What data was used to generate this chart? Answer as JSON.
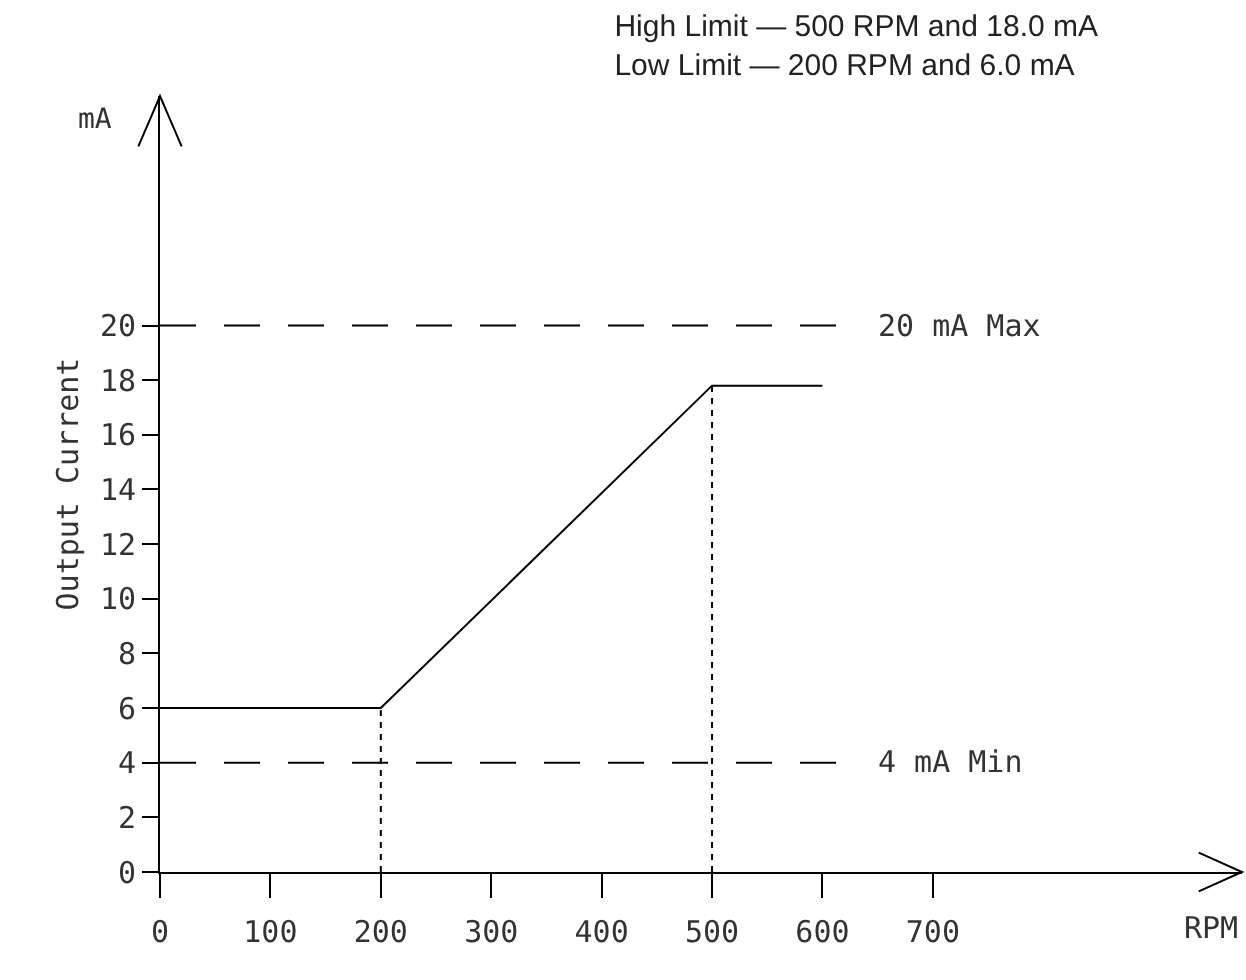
{
  "chart_data": {
    "type": "line",
    "title": "High Limit — 500 RPM and 18.0 mA",
    "subtitle": "Low Limit — 200 RPM and 6.0 mA",
    "xlabel": "RPM",
    "ylabel": "Output Current",
    "annotations": [
      "mA"
    ],
    "series": [
      {
        "color": "#000000",
        "line_style": "solid",
        "x": [
          0,
          200,
          500,
          600
        ],
        "values": [
          6,
          6,
          17.8,
          17.8
        ]
      },
      {
        "color": "#000000",
        "line_style": "dotted",
        "x": [
          200,
          200
        ],
        "values": [
          0,
          6
        ]
      },
      {
        "color": "#000000",
        "line_style": "dotted",
        "x": [
          500,
          500
        ],
        "values": [
          0,
          17.8
        ]
      }
    ],
    "xlim": [
      0,
      980
    ],
    "xticks": [
      0,
      100,
      200,
      300,
      400,
      500,
      600,
      700
    ],
    "ylim": [
      0,
      28.4
    ],
    "yticks": [
      0,
      2,
      4,
      6,
      8,
      10,
      12,
      14,
      16,
      18,
      20
    ],
    "ref_lines": [
      {
        "axis": "y",
        "value": 20,
        "label": "20 mA Max",
        "color": "#000000",
        "line_style": "dashed"
      },
      {
        "axis": "y",
        "value": 4,
        "label": "4 mA Min",
        "color": "#000000",
        "line_style": "dashed"
      }
    ],
    "grid": false,
    "marker": "none"
  }
}
